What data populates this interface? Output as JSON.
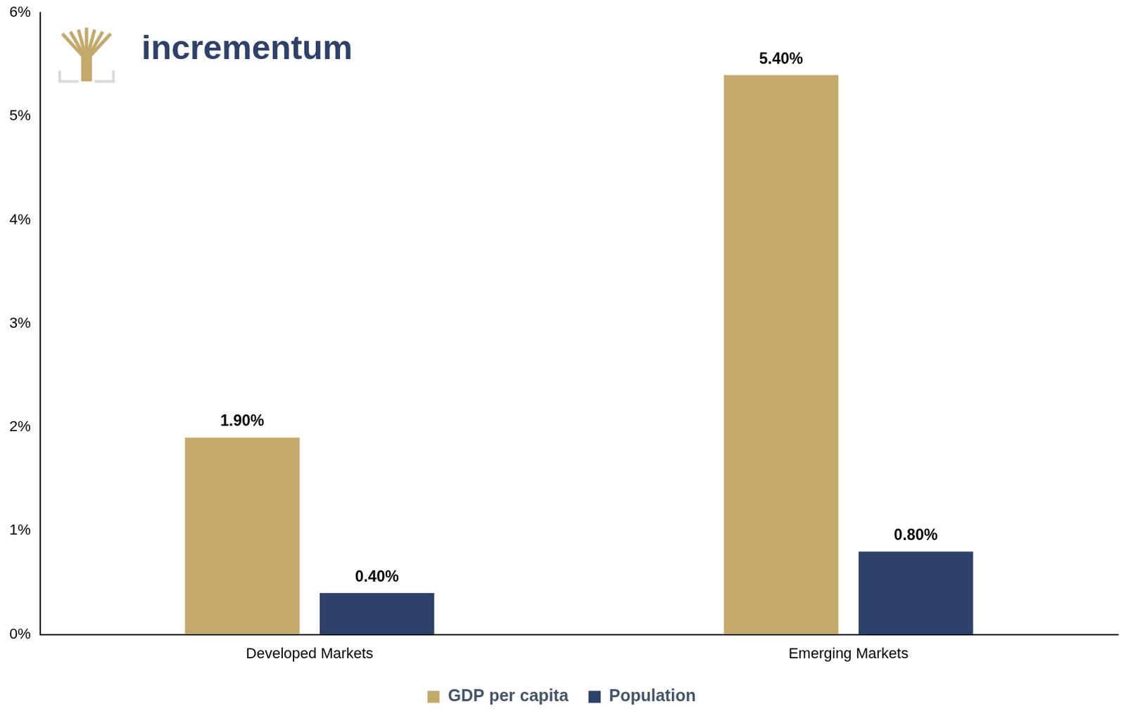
{
  "chart_data": {
    "type": "bar",
    "annotations": [
      "incrementum"
    ],
    "categories": [
      "Developed Markets",
      "Emerging Markets"
    ],
    "series": [
      {
        "name": "GDP per capita",
        "color": "#c3a96b",
        "values": [
          1.9,
          5.4
        ],
        "value_labels": [
          "1.90%",
          "5.40%"
        ]
      },
      {
        "name": "Population",
        "color": "#2e416a",
        "values": [
          0.4,
          0.8
        ],
        "value_labels": [
          "0.40%",
          "0.80%"
        ]
      }
    ],
    "ylim": [
      0,
      6
    ],
    "yticks": [
      {
        "value": 0,
        "label": "0%"
      },
      {
        "value": 1,
        "label": "1%"
      },
      {
        "value": 2,
        "label": "2%"
      },
      {
        "value": 3,
        "label": "3%"
      },
      {
        "value": 4,
        "label": "4%"
      },
      {
        "value": 5,
        "label": "5%"
      },
      {
        "value": 6,
        "label": "6%"
      }
    ],
    "grid": false,
    "legend": "bottom",
    "data_labels": true
  }
}
